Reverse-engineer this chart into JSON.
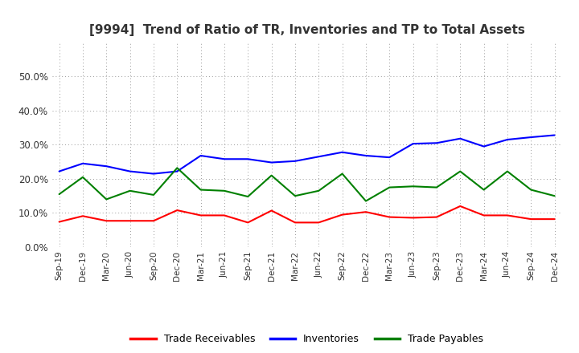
{
  "title": "[9994]  Trend of Ratio of TR, Inventories and TP to Total Assets",
  "x_labels": [
    "Sep-19",
    "Dec-19",
    "Mar-20",
    "Jun-20",
    "Sep-20",
    "Dec-20",
    "Mar-21",
    "Jun-21",
    "Sep-21",
    "Dec-21",
    "Mar-22",
    "Jun-22",
    "Sep-22",
    "Dec-22",
    "Mar-23",
    "Jun-23",
    "Sep-23",
    "Dec-23",
    "Mar-24",
    "Jun-24",
    "Sep-24",
    "Dec-24"
  ],
  "trade_receivables": [
    0.074,
    0.091,
    0.077,
    0.077,
    0.077,
    0.108,
    0.093,
    0.093,
    0.072,
    0.107,
    0.072,
    0.072,
    0.095,
    0.103,
    0.088,
    0.086,
    0.088,
    0.12,
    0.093,
    0.093,
    0.082,
    0.082
  ],
  "inventories": [
    0.222,
    0.245,
    0.237,
    0.222,
    0.215,
    0.222,
    0.268,
    0.258,
    0.258,
    0.248,
    0.252,
    0.265,
    0.278,
    0.268,
    0.263,
    0.303,
    0.305,
    0.318,
    0.295,
    0.315,
    0.322,
    0.328
  ],
  "trade_payables": [
    0.155,
    0.205,
    0.14,
    0.165,
    0.153,
    0.232,
    0.168,
    0.165,
    0.148,
    0.21,
    0.15,
    0.165,
    0.215,
    0.135,
    0.175,
    0.178,
    0.175,
    0.222,
    0.168,
    0.222,
    0.168,
    0.15
  ],
  "tr_color": "#ff0000",
  "inv_color": "#0000ff",
  "tp_color": "#008000",
  "ylim": [
    0.0,
    0.6
  ],
  "yticks": [
    0.0,
    0.1,
    0.2,
    0.3,
    0.4,
    0.5
  ],
  "background_color": "#ffffff",
  "grid_color": "#aaaaaa",
  "legend_labels": [
    "Trade Receivables",
    "Inventories",
    "Trade Payables"
  ]
}
